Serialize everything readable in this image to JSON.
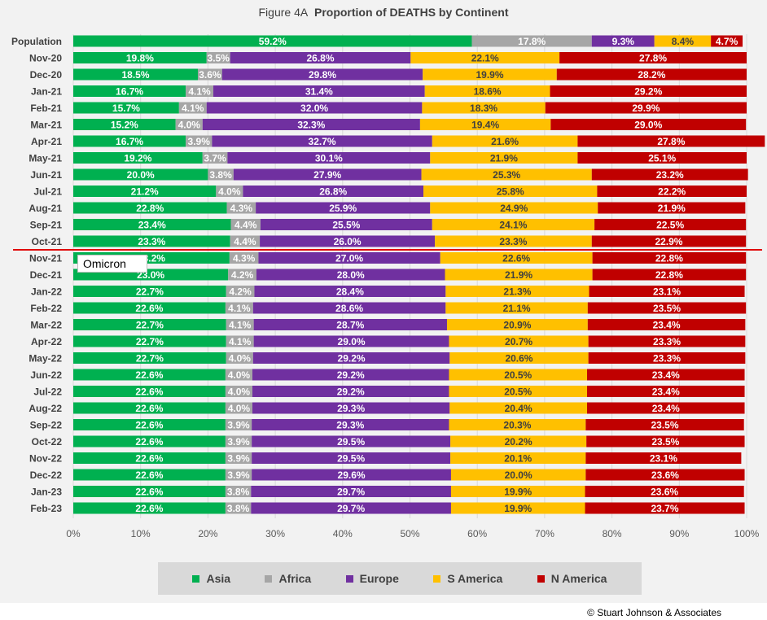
{
  "title": {
    "prefix": "Figure  4A",
    "main": "Proportion of DEATHS by Continent"
  },
  "annotation": {
    "label": "Omicron",
    "after_category": "Oct-21"
  },
  "copyright": "© Stuart Johnson & Associates",
  "chart_data": {
    "type": "bar",
    "orientation": "horizontal",
    "stacked": "percent",
    "title": "Proportion of DEATHS by Continent",
    "xlim": [
      0,
      100
    ],
    "x_ticks": [
      "0%",
      "10%",
      "20%",
      "30%",
      "40%",
      "50%",
      "60%",
      "70%",
      "80%",
      "90%",
      "100%"
    ],
    "legend_position": "bottom",
    "categories": [
      "Population",
      "Nov-20",
      "Dec-20",
      "Jan-21",
      "Feb-21",
      "Mar-21",
      "Apr-21",
      "May-21",
      "Jun-21",
      "Jul-21",
      "Aug-21",
      "Sep-21",
      "Oct-21",
      "Nov-21",
      "Dec-21",
      "Jan-22",
      "Feb-22",
      "Mar-22",
      "Apr-22",
      "May-22",
      "Jun-22",
      "Jul-22",
      "Aug-22",
      "Sep-22",
      "Oct-22",
      "Nov-22",
      "Dec-22",
      "Jan-23",
      "Feb-23"
    ],
    "series": [
      {
        "name": "Asia",
        "color": "#00b050",
        "values": [
          59.2,
          19.8,
          18.5,
          16.7,
          15.7,
          15.2,
          16.7,
          19.2,
          20.0,
          21.2,
          22.8,
          23.4,
          23.3,
          23.2,
          23.0,
          22.7,
          22.6,
          22.7,
          22.7,
          22.7,
          22.6,
          22.6,
          22.6,
          22.6,
          22.6,
          22.6,
          22.6,
          22.6,
          22.6
        ]
      },
      {
        "name": "Africa",
        "color": "#a6a6a6",
        "values": [
          17.8,
          3.5,
          3.6,
          4.1,
          4.1,
          4.0,
          3.9,
          3.7,
          3.8,
          4.0,
          4.3,
          4.4,
          4.4,
          4.3,
          4.2,
          4.2,
          4.1,
          4.1,
          4.1,
          4.0,
          4.0,
          4.0,
          4.0,
          3.9,
          3.9,
          3.9,
          3.9,
          3.8,
          3.8
        ]
      },
      {
        "name": "Europe",
        "color": "#7030a0",
        "values": [
          9.3,
          26.8,
          29.8,
          31.4,
          32.0,
          32.3,
          32.7,
          30.1,
          27.9,
          26.8,
          25.9,
          25.5,
          26.0,
          27.0,
          28.0,
          28.4,
          28.6,
          28.7,
          29.0,
          29.2,
          29.2,
          29.2,
          29.3,
          29.3,
          29.5,
          29.5,
          29.6,
          29.7,
          29.7
        ]
      },
      {
        "name": "S America",
        "color": "#ffc000",
        "values": [
          8.4,
          22.1,
          19.9,
          18.6,
          18.3,
          19.4,
          21.6,
          21.9,
          25.3,
          25.8,
          24.9,
          24.1,
          23.3,
          22.6,
          21.9,
          21.3,
          21.1,
          20.9,
          20.7,
          20.6,
          20.5,
          20.5,
          20.4,
          20.3,
          20.2,
          20.1,
          20.0,
          19.9,
          19.9
        ]
      },
      {
        "name": "N America",
        "color": "#c00000",
        "values": [
          4.7,
          27.8,
          28.2,
          29.2,
          29.9,
          29.0,
          27.8,
          25.1,
          23.2,
          22.2,
          21.9,
          22.5,
          22.9,
          22.8,
          22.8,
          23.1,
          23.5,
          23.4,
          23.3,
          23.3,
          23.4,
          23.4,
          23.4,
          23.5,
          23.5,
          23.1,
          23.6,
          23.6,
          23.7
        ]
      }
    ]
  }
}
